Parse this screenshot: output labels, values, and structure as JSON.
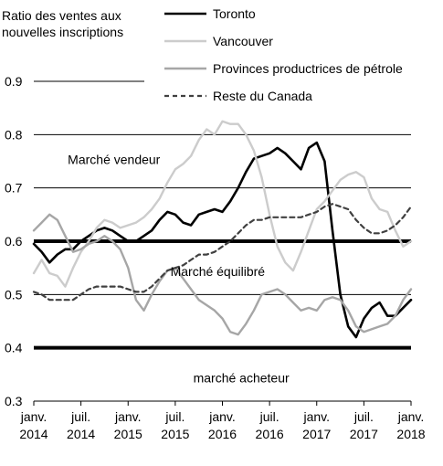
{
  "chart_data": {
    "type": "line",
    "title": "",
    "ylabel_lines": [
      "Ratio des ventes aux",
      "nouvelles inscriptions"
    ],
    "xlabel": "",
    "ylim": [
      0.3,
      0.9
    ],
    "yticks": [
      "0.3",
      "0.4",
      "0.5",
      "0.6",
      "0.7",
      "0.8",
      "0.9"
    ],
    "x_range": [
      2014.0,
      2018.0
    ],
    "x_ticks": [
      {
        "x": 2014.0,
        "line1": "janv.",
        "line2": "2014"
      },
      {
        "x": 2014.5,
        "line1": "juil.",
        "line2": "2014"
      },
      {
        "x": 2015.0,
        "line1": "janv.",
        "line2": "2015"
      },
      {
        "x": 2015.5,
        "line1": "juil.",
        "line2": "2015"
      },
      {
        "x": 2016.0,
        "line1": "janv.",
        "line2": "2016"
      },
      {
        "x": 2016.5,
        "line1": "juil.",
        "line2": "2016"
      },
      {
        "x": 2017.0,
        "line1": "janv.",
        "line2": "2017"
      },
      {
        "x": 2017.5,
        "line1": "juil.",
        "line2": "2017"
      },
      {
        "x": 2018.0,
        "line1": "janv.",
        "line2": "2018"
      }
    ],
    "grid": true,
    "legend_placement": "top-right",
    "reference_lines": [
      0.6,
      0.4
    ],
    "regions": [
      {
        "label": "Marché vendeur",
        "x": 2014.85,
        "y": 0.745
      },
      {
        "label": "Marché équilibré",
        "x": 2015.95,
        "y": 0.535
      },
      {
        "label": "marché acheteur",
        "x": 2016.2,
        "y": 0.335
      }
    ],
    "series": [
      {
        "name": "Toronto",
        "color": "#000000",
        "dash": "",
        "width": 2.6,
        "x": [
          2014.0,
          2014.0833,
          2014.1667,
          2014.25,
          2014.3333,
          2014.4167,
          2014.5,
          2014.5833,
          2014.6667,
          2014.75,
          2014.8333,
          2014.9167,
          2015.0,
          2015.0833,
          2015.1667,
          2015.25,
          2015.3333,
          2015.4167,
          2015.5,
          2015.5833,
          2015.6667,
          2015.75,
          2015.8333,
          2015.9167,
          2016.0,
          2016.0833,
          2016.1667,
          2016.25,
          2016.3333,
          2016.4167,
          2016.5,
          2016.5833,
          2016.6667,
          2016.75,
          2016.8333,
          2016.9167,
          2017.0,
          2017.0833,
          2017.1667,
          2017.25,
          2017.3333,
          2017.4167,
          2017.5,
          2017.5833,
          2017.6667,
          2017.75,
          2017.8333,
          2017.9167,
          2018.0
        ],
        "values": [
          0.595,
          0.58,
          0.56,
          0.575,
          0.585,
          0.585,
          0.6,
          0.61,
          0.62,
          0.625,
          0.62,
          0.61,
          0.6,
          0.6,
          0.61,
          0.62,
          0.64,
          0.655,
          0.65,
          0.635,
          0.63,
          0.65,
          0.655,
          0.66,
          0.655,
          0.675,
          0.7,
          0.73,
          0.755,
          0.76,
          0.765,
          0.775,
          0.765,
          0.75,
          0.735,
          0.775,
          0.785,
          0.75,
          0.62,
          0.5,
          0.44,
          0.42,
          0.455,
          0.475,
          0.485,
          0.46,
          0.46,
          0.475,
          0.49
        ]
      },
      {
        "name": "Vancouver",
        "color": "#cccccc",
        "dash": "",
        "width": 2.4,
        "x": [
          2014.0,
          2014.0833,
          2014.1667,
          2014.25,
          2014.3333,
          2014.4167,
          2014.5,
          2014.5833,
          2014.6667,
          2014.75,
          2014.8333,
          2014.9167,
          2015.0,
          2015.0833,
          2015.1667,
          2015.25,
          2015.3333,
          2015.4167,
          2015.5,
          2015.5833,
          2015.6667,
          2015.75,
          2015.8333,
          2015.9167,
          2016.0,
          2016.0833,
          2016.1667,
          2016.25,
          2016.3333,
          2016.4167,
          2016.5,
          2016.5833,
          2016.6667,
          2016.75,
          2016.8333,
          2016.9167,
          2017.0,
          2017.0833,
          2017.1667,
          2017.25,
          2017.3333,
          2017.4167,
          2017.5,
          2017.5833,
          2017.6667,
          2017.75,
          2017.8333,
          2017.9167,
          2018.0
        ],
        "values": [
          0.54,
          0.565,
          0.54,
          0.535,
          0.515,
          0.55,
          0.58,
          0.6,
          0.625,
          0.64,
          0.635,
          0.625,
          0.63,
          0.635,
          0.645,
          0.66,
          0.68,
          0.71,
          0.735,
          0.745,
          0.76,
          0.79,
          0.81,
          0.8,
          0.825,
          0.82,
          0.82,
          0.8,
          0.77,
          0.72,
          0.65,
          0.59,
          0.56,
          0.545,
          0.58,
          0.62,
          0.66,
          0.675,
          0.695,
          0.715,
          0.725,
          0.73,
          0.72,
          0.68,
          0.66,
          0.655,
          0.62,
          0.59,
          0.6
        ]
      },
      {
        "name": "Provinces productrices de pétrole",
        "color": "#a6a6a6",
        "dash": "",
        "width": 2.4,
        "x": [
          2014.0,
          2014.0833,
          2014.1667,
          2014.25,
          2014.3333,
          2014.4167,
          2014.5,
          2014.5833,
          2014.6667,
          2014.75,
          2014.8333,
          2014.9167,
          2015.0,
          2015.0833,
          2015.1667,
          2015.25,
          2015.3333,
          2015.4167,
          2015.5,
          2015.5833,
          2015.6667,
          2015.75,
          2015.8333,
          2015.9167,
          2016.0,
          2016.0833,
          2016.1667,
          2016.25,
          2016.3333,
          2016.4167,
          2016.5,
          2016.5833,
          2016.6667,
          2016.75,
          2016.8333,
          2016.9167,
          2017.0,
          2017.0833,
          2017.1667,
          2017.25,
          2017.3333,
          2017.4167,
          2017.5,
          2017.5833,
          2017.6667,
          2017.75,
          2017.8333,
          2017.9167,
          2018.0
        ],
        "values": [
          0.62,
          0.635,
          0.65,
          0.64,
          0.61,
          0.58,
          0.585,
          0.595,
          0.6,
          0.61,
          0.6,
          0.585,
          0.55,
          0.49,
          0.47,
          0.5,
          0.525,
          0.545,
          0.55,
          0.53,
          0.51,
          0.49,
          0.48,
          0.47,
          0.455,
          0.43,
          0.425,
          0.445,
          0.47,
          0.5,
          0.505,
          0.51,
          0.5,
          0.485,
          0.47,
          0.475,
          0.47,
          0.49,
          0.495,
          0.49,
          0.47,
          0.44,
          0.43,
          0.435,
          0.44,
          0.445,
          0.46,
          0.49,
          0.51
        ]
      },
      {
        "name": "Reste du Canada",
        "color": "#404040",
        "dash": "5,4",
        "width": 2.2,
        "x": [
          2014.0,
          2014.0833,
          2014.1667,
          2014.25,
          2014.3333,
          2014.4167,
          2014.5,
          2014.5833,
          2014.6667,
          2014.75,
          2014.8333,
          2014.9167,
          2015.0,
          2015.0833,
          2015.1667,
          2015.25,
          2015.3333,
          2015.4167,
          2015.5,
          2015.5833,
          2015.6667,
          2015.75,
          2015.8333,
          2015.9167,
          2016.0,
          2016.0833,
          2016.1667,
          2016.25,
          2016.3333,
          2016.4167,
          2016.5,
          2016.5833,
          2016.6667,
          2016.75,
          2016.8333,
          2016.9167,
          2017.0,
          2017.0833,
          2017.1667,
          2017.25,
          2017.3333,
          2017.4167,
          2017.5,
          2017.5833,
          2017.6667,
          2017.75,
          2017.8333,
          2017.9167,
          2018.0
        ],
        "values": [
          0.505,
          0.5,
          0.49,
          0.49,
          0.49,
          0.49,
          0.5,
          0.51,
          0.515,
          0.515,
          0.515,
          0.515,
          0.51,
          0.505,
          0.505,
          0.515,
          0.53,
          0.545,
          0.55,
          0.555,
          0.565,
          0.575,
          0.575,
          0.58,
          0.59,
          0.6,
          0.615,
          0.63,
          0.64,
          0.64,
          0.645,
          0.645,
          0.645,
          0.645,
          0.645,
          0.65,
          0.655,
          0.665,
          0.67,
          0.665,
          0.66,
          0.64,
          0.625,
          0.615,
          0.615,
          0.62,
          0.63,
          0.645,
          0.665
        ]
      }
    ]
  }
}
